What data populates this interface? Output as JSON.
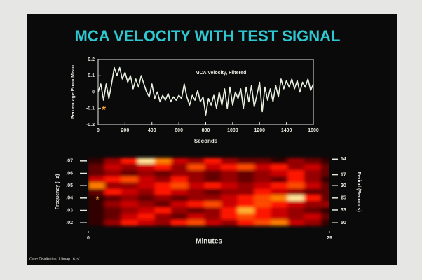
{
  "title": "MCA VELOCITY WITH TEST SIGNAL",
  "footnote": "Cone Distribution, 1.5mag 16, sf",
  "chart_data": [
    {
      "type": "line",
      "title": "MCA Velocity, Filtered",
      "x_label": "Seconds",
      "y_label": "Percentage From Mean",
      "annotation": "*",
      "annotation_color": "#f0a030",
      "color": "#e8f0e0",
      "x": [
        0,
        20,
        40,
        60,
        80,
        100,
        120,
        140,
        160,
        180,
        200,
        220,
        240,
        260,
        280,
        300,
        320,
        340,
        360,
        380,
        400,
        420,
        440,
        460,
        480,
        500,
        520,
        540,
        560,
        580,
        600,
        620,
        640,
        660,
        680,
        700,
        720,
        740,
        760,
        780,
        800,
        820,
        840,
        860,
        880,
        900,
        920,
        940,
        960,
        980,
        1000,
        1020,
        1040,
        1060,
        1080,
        1100,
        1120,
        1140,
        1160,
        1180,
        1200,
        1220,
        1240,
        1260,
        1280,
        1300,
        1320,
        1340,
        1360,
        1380,
        1400,
        1420,
        1440,
        1460,
        1480,
        1500,
        1520,
        1540,
        1560,
        1580,
        1600
      ],
      "values": [
        0.0,
        0.05,
        -0.05,
        0.05,
        -0.04,
        0.05,
        0.15,
        0.1,
        0.15,
        0.08,
        0.12,
        0.06,
        0.1,
        0.02,
        0.08,
        0.03,
        0.1,
        0.05,
        0.0,
        -0.03,
        0.05,
        -0.04,
        0.0,
        -0.06,
        -0.02,
        -0.05,
        -0.01,
        -0.06,
        -0.03,
        -0.05,
        -0.02,
        -0.04,
        0.05,
        -0.03,
        -0.08,
        -0.02,
        -0.05,
        0.01,
        -0.06,
        -0.03,
        -0.14,
        -0.04,
        -0.08,
        -0.02,
        -0.1,
        0.0,
        -0.08,
        0.02,
        -0.1,
        0.03,
        -0.08,
        0.0,
        -0.04,
        0.02,
        -0.1,
        0.03,
        -0.06,
        0.04,
        -0.09,
        -0.02,
        0.06,
        -0.12,
        0.03,
        -0.05,
        0.02,
        -0.06,
        0.04,
        -0.03,
        0.08,
        0.02,
        0.07,
        0.03,
        0.08,
        0.02,
        0.07,
        0.0,
        0.06,
        0.03,
        0.08,
        0.01,
        0.05
      ],
      "xlim": [
        0,
        1600
      ],
      "xticks": [
        0,
        200,
        400,
        600,
        800,
        1000,
        1200,
        1400,
        1600
      ],
      "ylim": [
        -0.2,
        0.2
      ],
      "yticks": [
        0.2,
        0.1,
        0,
        -0.1,
        -0.2
      ]
    },
    {
      "type": "heatmap",
      "x_label": "Minutes",
      "y_label": "Frequency (Hz)",
      "y2_label": "Period (Seconds)",
      "annotation": "*",
      "annotation_color": "#f0a030",
      "xlim": [
        0,
        29
      ],
      "xticks": [
        0,
        29
      ],
      "ylim": [
        0.015,
        0.075
      ],
      "yticks": [
        {
          "value": 0.07,
          "label": ".07"
        },
        {
          "value": 0.06,
          "label": ".06"
        },
        {
          "value": 0.05,
          "label": ".05"
        },
        {
          "value": 0.04,
          "label": ".04"
        },
        {
          "value": 0.03,
          "label": ".03"
        },
        {
          "value": 0.02,
          "label": ".02"
        }
      ],
      "y2scale": "reciprocal",
      "y2ticks": [
        14,
        17,
        20,
        25,
        33,
        50
      ],
      "x": [
        1,
        3,
        5,
        7,
        9,
        11,
        13,
        15,
        17,
        19,
        21,
        23,
        25,
        27,
        29
      ],
      "y": [
        0.07,
        0.065,
        0.06,
        0.055,
        0.05,
        0.045,
        0.04,
        0.035,
        0.03,
        0.025,
        0.02
      ],
      "z": [
        [
          0.1,
          0.3,
          0.5,
          0.9,
          0.7,
          0.4,
          0.3,
          0.5,
          0.3,
          0.2,
          0.2,
          0.1,
          0.3,
          0.2,
          0.1
        ],
        [
          0.2,
          0.4,
          0.3,
          0.4,
          0.5,
          0.3,
          0.6,
          0.4,
          0.5,
          0.6,
          0.4,
          0.5,
          0.3,
          0.4,
          0.2
        ],
        [
          0.2,
          0.3,
          0.2,
          0.3,
          0.2,
          0.3,
          0.3,
          0.2,
          0.3,
          0.2,
          0.3,
          0.4,
          0.5,
          0.3,
          0.2
        ],
        [
          0.4,
          0.5,
          0.6,
          0.4,
          0.3,
          0.5,
          0.3,
          0.2,
          0.3,
          0.2,
          0.3,
          0.2,
          0.5,
          0.3,
          0.1
        ],
        [
          0.7,
          0.3,
          0.3,
          0.4,
          0.5,
          0.6,
          0.4,
          0.5,
          0.4,
          0.3,
          0.4,
          0.5,
          0.6,
          0.4,
          0.2
        ],
        [
          0.2,
          0.5,
          0.4,
          0.3,
          0.5,
          0.4,
          0.3,
          0.2,
          0.3,
          0.3,
          0.5,
          0.4,
          0.3,
          0.2,
          0.2
        ],
        [
          0.1,
          0.2,
          0.3,
          0.2,
          0.3,
          0.2,
          0.3,
          0.3,
          0.4,
          0.5,
          0.6,
          0.7,
          0.9,
          0.5,
          0.2
        ],
        [
          0.1,
          0.3,
          0.4,
          0.3,
          0.2,
          0.4,
          0.5,
          0.6,
          0.4,
          0.5,
          0.6,
          0.5,
          0.4,
          0.3,
          0.3
        ],
        [
          0.1,
          0.2,
          0.3,
          0.4,
          0.5,
          0.3,
          0.2,
          0.3,
          0.5,
          0.8,
          0.5,
          0.4,
          0.3,
          0.2,
          0.1
        ],
        [
          0.1,
          0.2,
          0.4,
          0.5,
          0.3,
          0.2,
          0.4,
          0.3,
          0.5,
          0.6,
          0.5,
          0.4,
          0.3,
          0.4,
          0.2
        ],
        [
          0.1,
          0.3,
          0.5,
          0.4,
          0.3,
          0.5,
          0.6,
          0.4,
          0.3,
          0.5,
          0.6,
          0.7,
          0.4,
          0.3,
          0.1
        ]
      ]
    }
  ]
}
